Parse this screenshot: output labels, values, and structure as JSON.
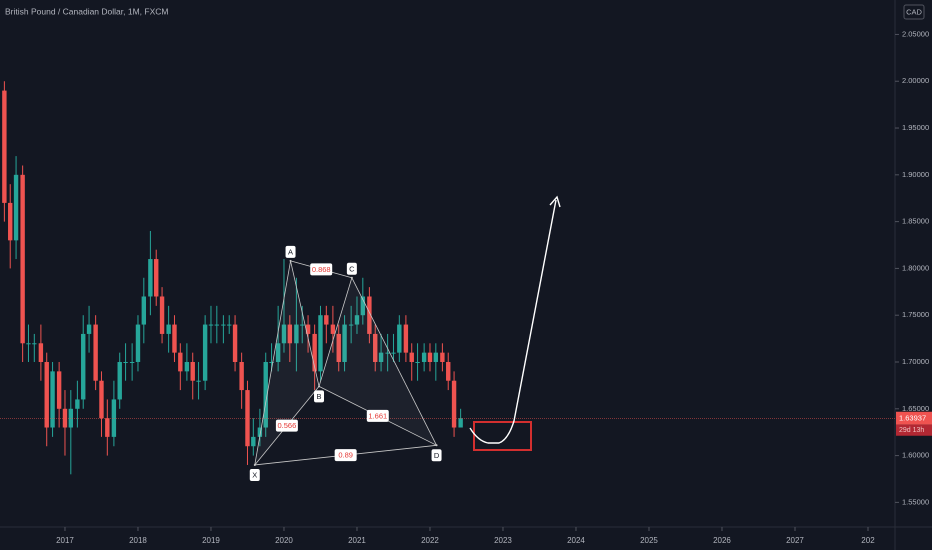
{
  "chart_data": {
    "type": "candlestick",
    "title": "British Pound / Canadian Dollar, 1M, FXCM",
    "currency": "CAD",
    "x": [
      2016.17,
      2016.25,
      2016.33,
      2016.42,
      2016.5,
      2016.58,
      2016.67,
      2016.75,
      2016.83,
      2016.92,
      2017,
      2017.08,
      2017.17,
      2017.25,
      2017.33,
      2017.42,
      2017.5,
      2017.58,
      2017.67,
      2017.75,
      2017.83,
      2017.92,
      2018,
      2018.08,
      2018.17,
      2018.25,
      2018.33,
      2018.42,
      2018.5,
      2018.58,
      2018.67,
      2018.75,
      2018.83,
      2018.92,
      2019,
      2019.08,
      2019.17,
      2019.25,
      2019.33,
      2019.42,
      2019.5,
      2019.58,
      2019.67,
      2019.75,
      2019.83,
      2019.92,
      2020,
      2020.08,
      2020.17,
      2020.25,
      2020.33,
      2020.42,
      2020.5,
      2020.58,
      2020.67,
      2020.75,
      2020.83,
      2020.92,
      2021,
      2021.08,
      2021.17,
      2021.25,
      2021.33,
      2021.42,
      2021.5,
      2021.58,
      2021.67,
      2021.75,
      2021.83,
      2021.92,
      2022,
      2022.08,
      2022.17,
      2022.25,
      2022.33,
      2022.42
    ],
    "open": [
      1.99,
      1.87,
      1.83,
      1.9,
      1.72,
      1.72,
      1.72,
      1.7,
      1.63,
      1.69,
      1.65,
      1.63,
      1.65,
      1.66,
      1.73,
      1.74,
      1.68,
      1.64,
      1.62,
      1.66,
      1.7,
      1.7,
      1.7,
      1.74,
      1.77,
      1.81,
      1.77,
      1.73,
      1.74,
      1.71,
      1.69,
      1.7,
      1.68,
      1.68,
      1.74,
      1.74,
      1.74,
      1.74,
      1.74,
      1.7,
      1.67,
      1.61,
      1.62,
      1.63,
      1.7,
      1.7,
      1.72,
      1.74,
      1.72,
      1.74,
      1.74,
      1.73,
      1.69,
      1.75,
      1.74,
      1.73,
      1.7,
      1.74,
      1.74,
      1.75,
      1.77,
      1.73,
      1.7,
      1.71,
      1.71,
      1.71,
      1.74,
      1.71,
      1.7,
      1.7,
      1.71,
      1.7,
      1.71,
      1.7,
      1.68,
      1.63
    ],
    "high": [
      2.0,
      1.89,
      1.92,
      1.91,
      1.74,
      1.73,
      1.74,
      1.71,
      1.7,
      1.7,
      1.67,
      1.67,
      1.68,
      1.75,
      1.76,
      1.75,
      1.69,
      1.66,
      1.68,
      1.71,
      1.72,
      1.72,
      1.75,
      1.79,
      1.84,
      1.82,
      1.78,
      1.76,
      1.75,
      1.72,
      1.72,
      1.71,
      1.7,
      1.75,
      1.76,
      1.76,
      1.75,
      1.75,
      1.75,
      1.71,
      1.68,
      1.64,
      1.65,
      1.71,
      1.72,
      1.76,
      1.81,
      1.75,
      1.79,
      1.76,
      1.75,
      1.74,
      1.76,
      1.76,
      1.76,
      1.74,
      1.75,
      1.76,
      1.77,
      1.79,
      1.78,
      1.74,
      1.73,
      1.73,
      1.73,
      1.75,
      1.75,
      1.72,
      1.72,
      1.72,
      1.72,
      1.72,
      1.72,
      1.71,
      1.69,
      1.65
    ],
    "low": [
      1.85,
      1.8,
      1.81,
      1.7,
      1.7,
      1.7,
      1.68,
      1.61,
      1.62,
      1.63,
      1.6,
      1.58,
      1.63,
      1.65,
      1.71,
      1.67,
      1.62,
      1.6,
      1.61,
      1.65,
      1.68,
      1.68,
      1.69,
      1.72,
      1.75,
      1.76,
      1.72,
      1.71,
      1.7,
      1.67,
      1.68,
      1.66,
      1.66,
      1.67,
      1.72,
      1.72,
      1.72,
      1.73,
      1.69,
      1.65,
      1.59,
      1.6,
      1.61,
      1.62,
      1.69,
      1.69,
      1.71,
      1.7,
      1.69,
      1.72,
      1.71,
      1.67,
      1.68,
      1.72,
      1.71,
      1.69,
      1.69,
      1.72,
      1.73,
      1.74,
      1.72,
      1.69,
      1.69,
      1.69,
      1.7,
      1.7,
      1.7,
      1.68,
      1.68,
      1.69,
      1.69,
      1.68,
      1.69,
      1.67,
      1.62,
      1.63
    ],
    "close": [
      1.87,
      1.83,
      1.9,
      1.72,
      1.72,
      1.72,
      1.7,
      1.63,
      1.69,
      1.65,
      1.63,
      1.65,
      1.66,
      1.73,
      1.74,
      1.68,
      1.64,
      1.62,
      1.66,
      1.7,
      1.7,
      1.7,
      1.74,
      1.77,
      1.81,
      1.77,
      1.73,
      1.74,
      1.71,
      1.69,
      1.7,
      1.68,
      1.68,
      1.74,
      1.74,
      1.74,
      1.74,
      1.74,
      1.7,
      1.67,
      1.61,
      1.62,
      1.63,
      1.7,
      1.7,
      1.72,
      1.74,
      1.72,
      1.74,
      1.74,
      1.73,
      1.69,
      1.75,
      1.74,
      1.73,
      1.7,
      1.74,
      1.74,
      1.75,
      1.77,
      1.73,
      1.7,
      1.71,
      1.71,
      1.71,
      1.74,
      1.71,
      1.7,
      1.7,
      1.71,
      1.7,
      1.71,
      1.7,
      1.68,
      1.63,
      1.64
    ],
    "up_color": "#26a69a",
    "down_color": "#ef5350",
    "xlim": [
      2016.11,
      2028.37
    ],
    "ylim": [
      1.5237,
      2.0868
    ],
    "xticks": [
      2017,
      2018,
      2019,
      2020,
      2021,
      2022,
      2023,
      2024,
      2025,
      2026,
      2027,
      {
        "value": 2028,
        "label": "202"
      }
    ],
    "yticks": [
      {
        "value": 1.55,
        "label": "1.55000"
      },
      {
        "value": 1.6,
        "label": "1.60000"
      },
      {
        "value": 1.65,
        "label": "1.65000"
      },
      {
        "value": 1.7,
        "label": "1.70000"
      },
      {
        "value": 1.75,
        "label": "1.75000"
      },
      {
        "value": 1.8,
        "label": "1.80000"
      },
      {
        "value": 1.85,
        "label": "1.85000"
      },
      {
        "value": 1.9,
        "label": "1.90000"
      },
      {
        "value": 1.95,
        "label": "1.95000"
      },
      {
        "value": 2.0,
        "label": "2.00000"
      },
      {
        "value": 2.05,
        "label": "2.05000"
      }
    ],
    "last_price": {
      "value": 1.63937,
      "label": "1.63937"
    },
    "countdown": "29d 13h",
    "pattern": {
      "points": [
        {
          "label": "X",
          "x": 2019.6,
          "y": 1.59
        },
        {
          "label": "A",
          "x": 2020.09,
          "y": 1.808
        },
        {
          "label": "B",
          "x": 2020.48,
          "y": 1.674
        },
        {
          "label": "C",
          "x": 2020.93,
          "y": 1.79
        },
        {
          "label": "D",
          "x": 2022.09,
          "y": 1.611
        }
      ],
      "ratios": [
        "0.868",
        "0.566",
        "1.661",
        "0.89"
      ]
    }
  }
}
